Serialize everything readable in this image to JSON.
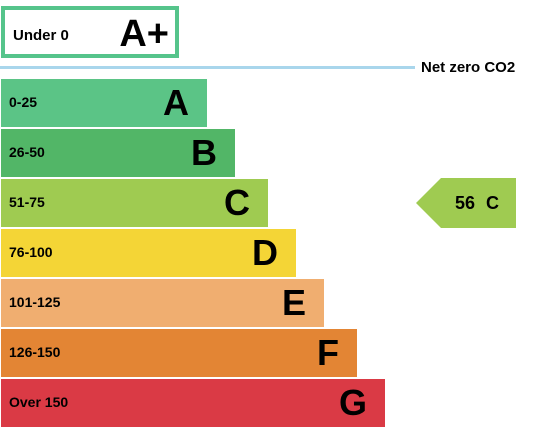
{
  "chart_data": {
    "type": "bar",
    "top_band": {
      "range": "Under 0",
      "letter": "A+",
      "color": "#55c48b"
    },
    "reference_line": {
      "label": "Net zero CO2",
      "color": "#a9d6ec"
    },
    "bands": [
      {
        "range": "0-25",
        "letter": "A",
        "color": "#5bc486",
        "relative_length": 0.37
      },
      {
        "range": "26-50",
        "letter": "B",
        "color": "#52b667",
        "relative_length": 0.42
      },
      {
        "range": "51-75",
        "letter": "C",
        "color": "#9fcb51",
        "relative_length": 0.48
      },
      {
        "range": "76-100",
        "letter": "D",
        "color": "#f4d536",
        "relative_length": 0.53
      },
      {
        "range": "101-125",
        "letter": "E",
        "color": "#f0ae70",
        "relative_length": 0.58
      },
      {
        "range": "126-150",
        "letter": "F",
        "color": "#e38534",
        "relative_length": 0.64
      },
      {
        "range": "Over 150",
        "letter": "G",
        "color": "#da3a45",
        "relative_length": 0.69
      }
    ],
    "current_rating": {
      "value": "56",
      "letter": "C",
      "color": "#9fcb51"
    }
  }
}
